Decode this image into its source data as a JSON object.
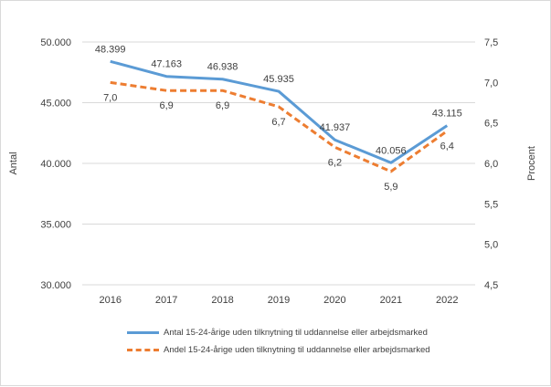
{
  "chart_data": {
    "type": "line",
    "categories": [
      "2016",
      "2017",
      "2018",
      "2019",
      "2020",
      "2021",
      "2022"
    ],
    "series": [
      {
        "name": "Antal 15-24-årige uden tilknytning til uddannelse eller arbejdsmarked",
        "axis": "left",
        "values": [
          48399,
          47163,
          46938,
          45935,
          41937,
          40056,
          43115
        ],
        "labels": [
          "48.399",
          "47.163",
          "46.938",
          "45.935",
          "41.937",
          "40.056",
          "43.115"
        ],
        "color": "#5b9bd5",
        "style": "solid"
      },
      {
        "name": "Andel 15-24-årige uden tilknytning til uddannelse eller arbejdsmarked",
        "axis": "right",
        "values": [
          7.0,
          6.9,
          6.9,
          6.7,
          6.2,
          5.9,
          6.4
        ],
        "labels": [
          "7,0",
          "6,9",
          "6,9",
          "6,7",
          "6,2",
          "5,9",
          "6,4"
        ],
        "color": "#ed7d31",
        "style": "dashed"
      }
    ],
    "ylabel": "Antal",
    "y2label": "Procent",
    "ylim": [
      30000,
      50000
    ],
    "y2lim": [
      4.5,
      7.5
    ],
    "yticks": [
      "30.000",
      "35.000",
      "40.000",
      "45.000",
      "50.000"
    ],
    "y2ticks": [
      "4,5",
      "5,0",
      "5,5",
      "6,0",
      "6,5",
      "7,0",
      "7,5"
    ],
    "grid": true,
    "legend": "bottom"
  }
}
